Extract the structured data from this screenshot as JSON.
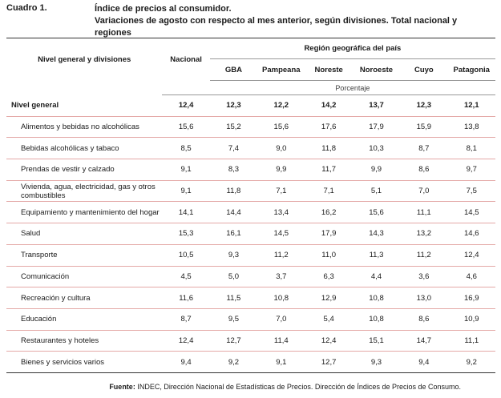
{
  "header": {
    "cuadro": "Cuadro 1.",
    "title": "Índice de precios al consumidor.",
    "subtitle": "Variaciones de agosto con respecto al mes anterior, según divisiones. Total nacional y regiones"
  },
  "table": {
    "row_header": "Nivel general y divisiones",
    "nacional_header": "Nacional",
    "region_group_header": "Región geográfica del país",
    "region_headers": [
      "GBA",
      "Pampeana",
      "Noreste",
      "Noroeste",
      "Cuyo",
      "Patagonia"
    ],
    "unit_label": "Porcentaje",
    "rows": [
      {
        "name": "Nivel general",
        "values": [
          "12,4",
          "12,3",
          "12,2",
          "14,2",
          "13,7",
          "12,3",
          "12,1"
        ]
      },
      {
        "name": "Alimentos y bebidas no alcohólicas",
        "values": [
          "15,6",
          "15,2",
          "15,6",
          "17,6",
          "17,9",
          "15,9",
          "13,8"
        ]
      },
      {
        "name": "Bebidas alcohólicas y tabaco",
        "values": [
          "8,5",
          "7,4",
          "9,0",
          "11,8",
          "10,3",
          "8,7",
          "8,1"
        ]
      },
      {
        "name": "Prendas de vestir y calzado",
        "values": [
          "9,1",
          "8,3",
          "9,9",
          "11,7",
          "9,9",
          "8,6",
          "9,7"
        ]
      },
      {
        "name": "Vivienda, agua, electricidad, gas y otros combustibles",
        "values": [
          "9,1",
          "11,8",
          "7,1",
          "7,1",
          "5,1",
          "7,0",
          "7,5"
        ]
      },
      {
        "name": "Equipamiento y mantenimiento del hogar",
        "values": [
          "14,1",
          "14,4",
          "13,4",
          "16,2",
          "15,6",
          "11,1",
          "14,5"
        ]
      },
      {
        "name": "Salud",
        "values": [
          "15,3",
          "16,1",
          "14,5",
          "17,9",
          "14,3",
          "13,2",
          "14,6"
        ]
      },
      {
        "name": "Transporte",
        "values": [
          "10,5",
          "9,3",
          "11,2",
          "11,0",
          "11,3",
          "11,2",
          "12,4"
        ]
      },
      {
        "name": "Comunicación",
        "values": [
          "4,5",
          "5,0",
          "3,7",
          "6,3",
          "4,4",
          "3,6",
          "4,6"
        ]
      },
      {
        "name": "Recreación y cultura",
        "values": [
          "11,6",
          "11,5",
          "10,8",
          "12,9",
          "10,8",
          "13,0",
          "16,9"
        ]
      },
      {
        "name": "Educación",
        "values": [
          "8,7",
          "9,5",
          "7,0",
          "5,4",
          "10,8",
          "8,6",
          "10,9"
        ]
      },
      {
        "name": "Restaurantes y hoteles",
        "values": [
          "12,4",
          "12,7",
          "11,4",
          "12,4",
          "15,1",
          "14,7",
          "11,1"
        ]
      },
      {
        "name": "Bienes y servicios varios",
        "values": [
          "9,4",
          "9,2",
          "9,1",
          "12,7",
          "9,3",
          "9,4",
          "9,2"
        ]
      }
    ]
  },
  "footer": {
    "source_label": "Fuente:",
    "source_text": " INDEC, Dirección Nacional de Estadísticas de Precios. Dirección de Índices de Precios de Consumo."
  }
}
